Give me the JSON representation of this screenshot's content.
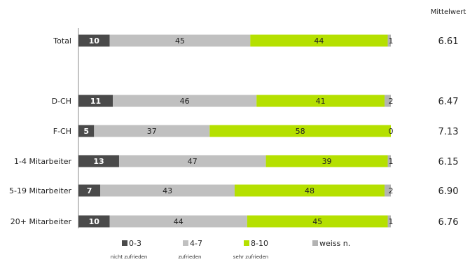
{
  "chart_data": {
    "type": "bar",
    "orientation": "horizontal",
    "stacked": true,
    "percent_scale": true,
    "categories": [
      "Total",
      "D-CH",
      "F-CH",
      "1-4 Mitarbeiter",
      "5-19 Mitarbeiter",
      "20+ Mitarbeiter"
    ],
    "series": [
      {
        "name": "0-3",
        "sublabel": "nicht zufrieden",
        "color": "#4a4a4a",
        "label_color": "#ffffff",
        "values": [
          10,
          11,
          5,
          13,
          7,
          10
        ]
      },
      {
        "name": "4-7",
        "sublabel": "zufrieden",
        "color": "#c0c0c0",
        "label_color": "#222222",
        "values": [
          45,
          46,
          37,
          47,
          43,
          44
        ]
      },
      {
        "name": "8-10",
        "sublabel": "sehr zufrieden",
        "color": "#b5e000",
        "label_color": "#222222",
        "values": [
          44,
          41,
          58,
          39,
          48,
          45
        ]
      },
      {
        "name": "weiss n.",
        "sublabel": "",
        "color": "#b3b3b3",
        "label_color": "#222222",
        "values": [
          1,
          2,
          0,
          1,
          2,
          1
        ]
      }
    ],
    "mean_header": "Mittelwert",
    "means": [
      "6.61",
      "6.47",
      "7.13",
      "6.15",
      "6.90",
      "6.76"
    ],
    "legend_position": "bottom",
    "grid": false
  }
}
